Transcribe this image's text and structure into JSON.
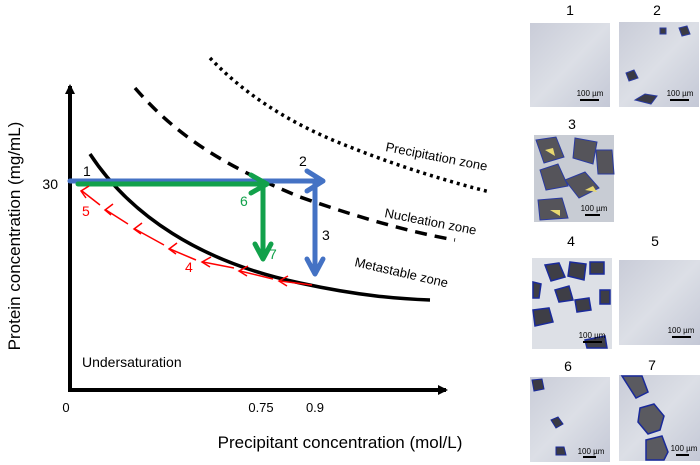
{
  "axes": {
    "y_label": "Protein concentration (mg/mL)",
    "x_label": "Precipitant concentration (mol/L)",
    "y_ticks": [
      "30"
    ],
    "x_ticks": [
      "0",
      "0.75",
      "0.9"
    ]
  },
  "zones": {
    "precipitation": "Precipitation zone",
    "nucleation": "Nucleation zone",
    "metastable": "Metastable zone",
    "undersaturation": "Undersaturation"
  },
  "path_labels": {
    "p1": "1",
    "p2": "2",
    "p3": "3",
    "p4": "4",
    "p5": "5",
    "p6": "6",
    "p7": "7"
  },
  "colors": {
    "blue_path": "#4472C4",
    "green_path": "#12A14B",
    "red_path": "#FF0000",
    "curves": "#000000"
  },
  "micrographs": [
    {
      "label": "1",
      "scale": "100 µm"
    },
    {
      "label": "2",
      "scale": "100 µm"
    },
    {
      "label": "3",
      "scale": "100 µm"
    },
    {
      "label": "4",
      "scale": "100 µm"
    },
    {
      "label": "5",
      "scale": "100 µm"
    },
    {
      "label": "6",
      "scale": "100 µm"
    },
    {
      "label": "7",
      "scale": "100 µm"
    }
  ]
}
